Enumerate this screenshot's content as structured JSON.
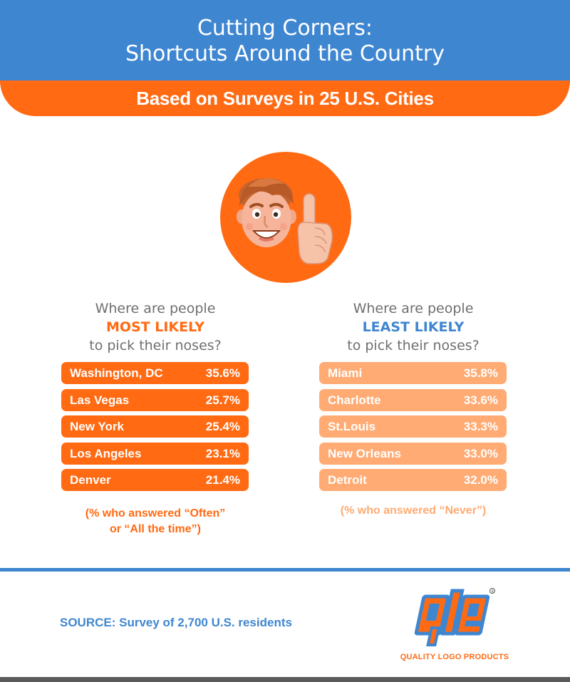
{
  "header": {
    "title_line1": "Cutting Corners:",
    "title_line2": "Shortcuts Around the Country",
    "subtitle": "Based on Surveys in 25 U.S. Cities"
  },
  "left": {
    "q_line1": "Where are people",
    "q_highlight": "MOST LIKELY",
    "q_line3": "to pick their noses?",
    "note_line1": "(% who answered “Often”",
    "note_line2": "or “All the time”)"
  },
  "right": {
    "q_line1": "Where are people",
    "q_highlight": "LEAST LIKELY",
    "q_line3": "to pick their noses?",
    "note_line1": "(% who answered “Never”)"
  },
  "chart_data": [
    {
      "type": "table",
      "categories": [
        "Washington, DC",
        "Las Vegas",
        "New York",
        "Los Angeles",
        "Denver"
      ],
      "labels": [
        "35.6%",
        "25.7%",
        "25.4%",
        "23.1%",
        "21.4%"
      ],
      "values": [
        35.6,
        25.7,
        25.4,
        23.1,
        21.4
      ]
    },
    {
      "type": "table",
      "categories": [
        "Miami",
        "Charlotte",
        "St.Louis",
        "New Orleans",
        "Detroit"
      ],
      "labels": [
        "35.8%",
        "33.6%",
        "33.3%",
        "33.0%",
        "32.0%"
      ],
      "values": [
        35.8,
        33.6,
        33.3,
        33.0,
        32.0
      ]
    }
  ],
  "footer": {
    "source": "SOURCE: Survey of 2,700 U.S. residents",
    "logo_text": "QUALITY LOGO PRODUCTS"
  },
  "colors": {
    "blue": "#3f86d1",
    "orange": "#ff6a13",
    "light_orange": "#ffab73"
  },
  "icons": [
    "face-illustration-icon",
    "pointing-finger-icon",
    "qlp-logo-icon"
  ]
}
